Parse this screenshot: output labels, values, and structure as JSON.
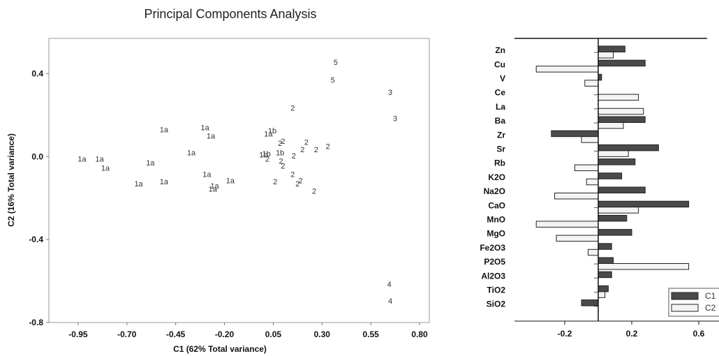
{
  "chart_data": [
    {
      "type": "scatter",
      "title": "Principal Components Analysis",
      "xlabel": "C1 (62% Total variance)",
      "ylabel": "C2 (16% Total variance)",
      "xlim": [
        -1.1,
        0.85
      ],
      "ylim": [
        -0.8,
        0.57
      ],
      "xticks": [
        "-0.95",
        "-0.70",
        "-0.45",
        "-0.20",
        "0.05",
        "0.30",
        "0.55",
        "0.80"
      ],
      "yticks": [
        "0.4",
        "0.0",
        "-0.4",
        "-0.8"
      ],
      "grid": false,
      "points": [
        {
          "label": "1a",
          "x": -0.93,
          "y": -0.01
        },
        {
          "label": "1a",
          "x": -0.84,
          "y": -0.01
        },
        {
          "label": "1a",
          "x": -0.81,
          "y": -0.055
        },
        {
          "label": "1a",
          "x": -0.64,
          "y": -0.13
        },
        {
          "label": "1a",
          "x": -0.58,
          "y": -0.03
        },
        {
          "label": "1a",
          "x": -0.51,
          "y": 0.13
        },
        {
          "label": "1a",
          "x": -0.51,
          "y": -0.12
        },
        {
          "label": "1a",
          "x": -0.37,
          "y": 0.02
        },
        {
          "label": "1a",
          "x": -0.3,
          "y": 0.14
        },
        {
          "label": "1a",
          "x": -0.27,
          "y": 0.1
        },
        {
          "label": "1a",
          "x": -0.29,
          "y": -0.085
        },
        {
          "label": "1a",
          "x": -0.26,
          "y": -0.155
        },
        {
          "label": "1a",
          "x": -0.25,
          "y": -0.14
        },
        {
          "label": "1a",
          "x": -0.17,
          "y": -0.115
        },
        {
          "label": "1a",
          "x": 0.025,
          "y": 0.11
        },
        {
          "label": "1b",
          "x": 0.045,
          "y": 0.125
        },
        {
          "label": "1b",
          "x": 0.0,
          "y": 0.01
        },
        {
          "label": "1b",
          "x": 0.015,
          "y": 0.015
        },
        {
          "label": "1b",
          "x": 0.085,
          "y": 0.02
        },
        {
          "label": "2",
          "x": 0.15,
          "y": 0.235
        },
        {
          "label": "2",
          "x": 0.1,
          "y": 0.075
        },
        {
          "label": "2",
          "x": 0.085,
          "y": 0.065
        },
        {
          "label": "2",
          "x": 0.155,
          "y": 0.005
        },
        {
          "label": "2",
          "x": 0.22,
          "y": 0.07
        },
        {
          "label": "2",
          "x": 0.2,
          "y": 0.035
        },
        {
          "label": "2",
          "x": 0.27,
          "y": 0.035
        },
        {
          "label": "2",
          "x": 0.33,
          "y": 0.05
        },
        {
          "label": "2",
          "x": 0.02,
          "y": -0.01
        },
        {
          "label": "2",
          "x": 0.09,
          "y": -0.02
        },
        {
          "label": "2",
          "x": 0.1,
          "y": -0.045
        },
        {
          "label": "2",
          "x": 0.15,
          "y": -0.085
        },
        {
          "label": "2",
          "x": 0.06,
          "y": -0.12
        },
        {
          "label": "2",
          "x": 0.19,
          "y": -0.115
        },
        {
          "label": "2",
          "x": 0.175,
          "y": -0.13
        },
        {
          "label": "2",
          "x": 0.26,
          "y": -0.165
        },
        {
          "label": "3",
          "x": 0.65,
          "y": 0.31
        },
        {
          "label": "3",
          "x": 0.675,
          "y": 0.185
        },
        {
          "label": "4",
          "x": 0.645,
          "y": -0.615
        },
        {
          "label": "4",
          "x": 0.65,
          "y": -0.695
        },
        {
          "label": "5",
          "x": 0.37,
          "y": 0.455
        },
        {
          "label": "5",
          "x": 0.355,
          "y": 0.37
        }
      ]
    },
    {
      "type": "bar",
      "orientation": "horizontal",
      "categories": [
        "Zn",
        "Cu",
        "V",
        "Ce",
        "La",
        "Ba",
        "Zr",
        "Sr",
        "Rb",
        "K2O",
        "Na2O",
        "CaO",
        "MnO",
        "MgO",
        "Fe2O3",
        "P2O5",
        "Al2O3",
        "TiO2",
        "SiO2"
      ],
      "series": [
        {
          "name": "C1",
          "color": "#4a4a4a",
          "values": [
            0.16,
            0.28,
            0.02,
            0.0,
            0.0,
            0.28,
            -0.28,
            0.36,
            0.22,
            0.14,
            0.28,
            0.54,
            0.17,
            0.2,
            0.08,
            0.09,
            0.08,
            0.06,
            -0.1
          ]
        },
        {
          "name": "C2",
          "color": "#f4f4f4",
          "values": [
            0.09,
            -0.37,
            -0.08,
            0.24,
            0.27,
            0.15,
            -0.1,
            0.18,
            -0.14,
            -0.07,
            -0.26,
            0.24,
            -0.37,
            -0.25,
            -0.06,
            0.54,
            0.0,
            0.04,
            0.0
          ]
        }
      ],
      "xticks": [
        "-0.2",
        "0.2",
        "0.6"
      ],
      "xlim": [
        -0.5,
        0.65
      ],
      "legend": "bottom-right",
      "grid": false
    }
  ]
}
